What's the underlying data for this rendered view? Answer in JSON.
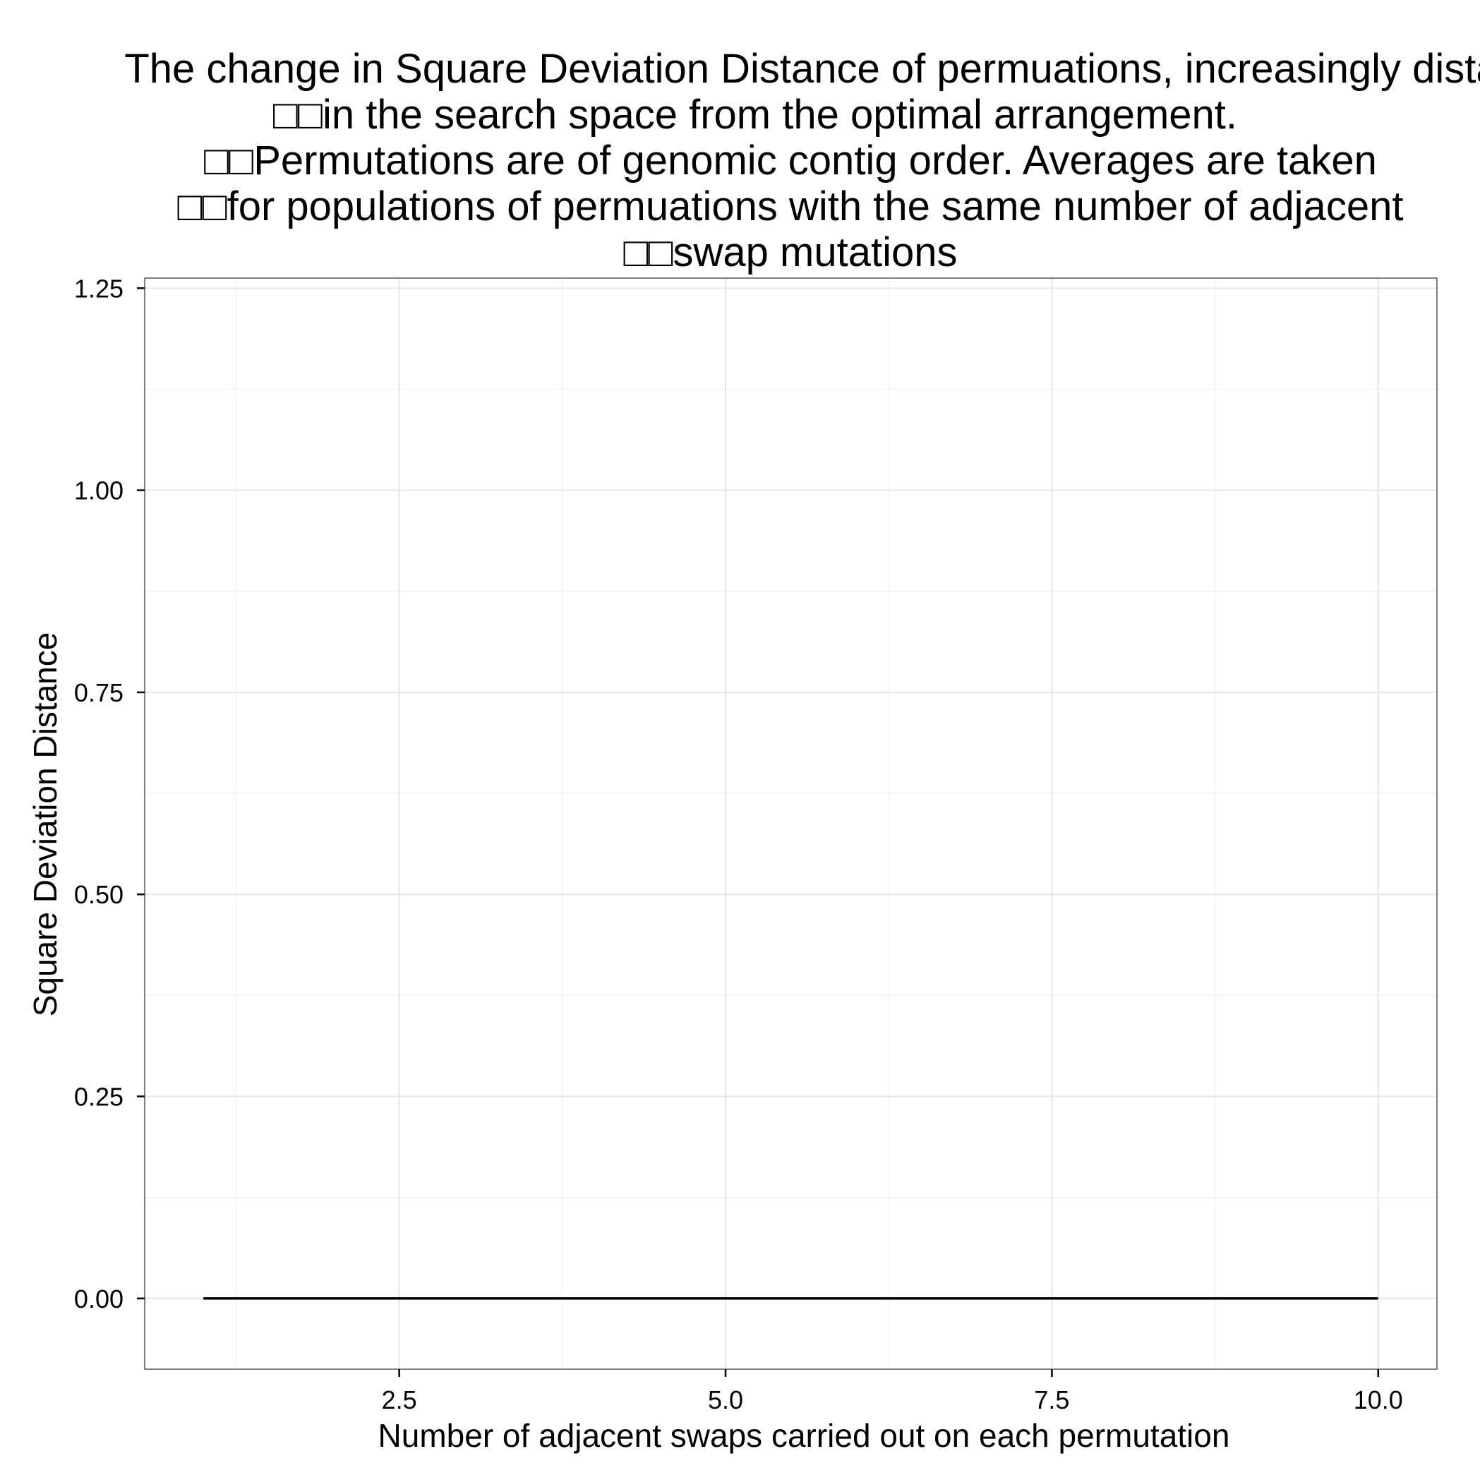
{
  "chart_data": {
    "type": "line",
    "title_lines": [
      "The change in Square Deviation Distance of permuations, increasingly dista",
      "□□in the search space from the optimal arrangement.",
      "□□Permutations are of genomic contig order. Averages are taken",
      "□□for populations of permuations with the same number of adjacent",
      "□□swap mutations"
    ],
    "xlabel": "Number of adjacent swaps carried out on each permutation",
    "ylabel": "Square Deviation Distance",
    "xlim": [
      0.55,
      10.45
    ],
    "ylim": [
      -0.0875,
      1.2625
    ],
    "x_ticks": [
      2.5,
      5.0,
      7.5,
      10.0
    ],
    "x_tick_labels": [
      "2.5",
      "5.0",
      "7.5",
      "10.0"
    ],
    "x_minor_ticks": [
      1.25,
      3.75,
      6.25,
      8.75
    ],
    "y_ticks": [
      0.0,
      0.25,
      0.5,
      0.75,
      1.0,
      1.25
    ],
    "y_tick_labels": [
      "0.00",
      "0.25",
      "0.50",
      "0.75",
      "1.00",
      "1.25"
    ],
    "y_minor_ticks": [
      0.125,
      0.375,
      0.625,
      0.875,
      1.125
    ],
    "grid": true,
    "legend": "none",
    "series": [
      {
        "x": [
          1,
          2,
          3,
          4,
          5,
          6,
          7,
          8,
          9,
          10
        ],
        "values": [
          0,
          0,
          0,
          0,
          0,
          0,
          0,
          0,
          0,
          0
        ],
        "color": "#000000"
      }
    ],
    "colors": {
      "panel_border": "#7f7f7f",
      "grid_major": "#e5e5e5",
      "grid_minor": "#f2f2f2",
      "line": "#000000",
      "tick": "#000000"
    }
  }
}
